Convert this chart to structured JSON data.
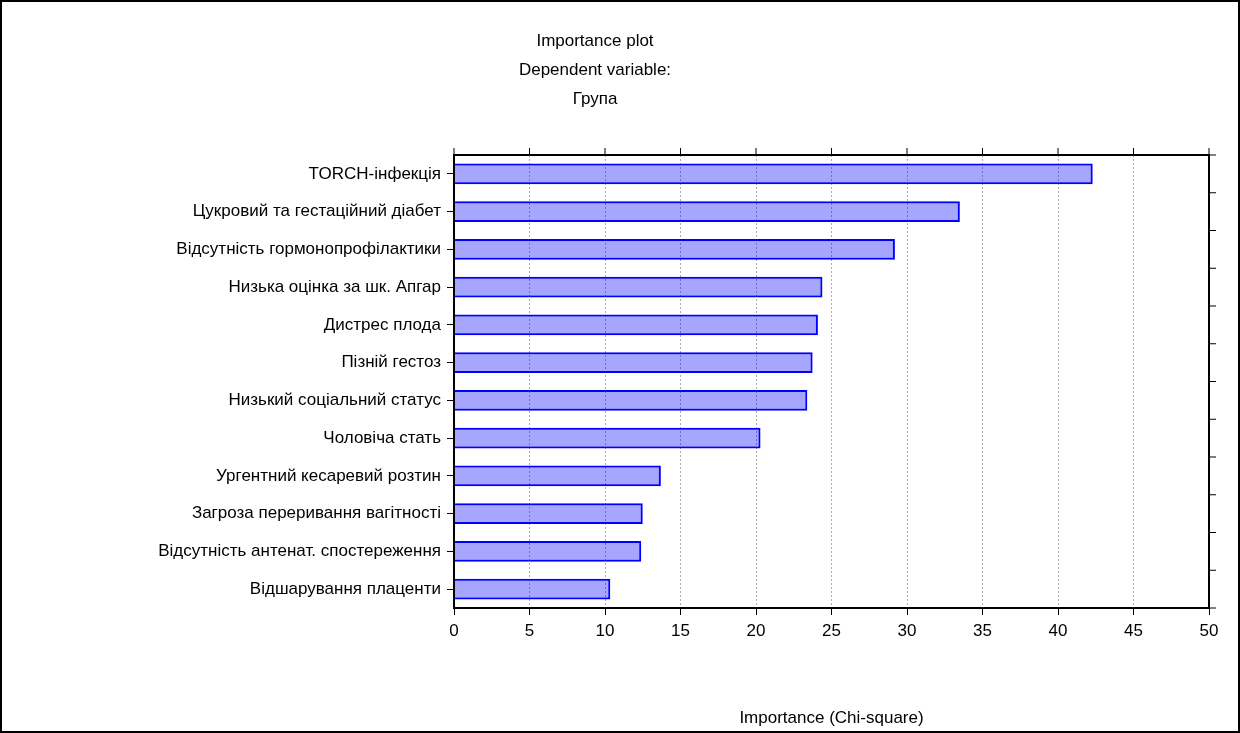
{
  "chart_data": {
    "type": "bar",
    "orientation": "horizontal",
    "title": "Importance plot\nDependent variable:\nГрупа",
    "xlabel": "Importance (Chi-square)",
    "categories": [
      "TORCH-інфекція",
      "Цукровий та гестаційний діабет",
      "Відсутність гормонопрофілактики",
      "Низька оцінка за шк. Апгар",
      "Дистрес плода",
      "Пізній гестоз",
      "Низький соціальний статус",
      "Чоловіча стать",
      "Ургентний кесаревий розтин",
      "Загроза переривання вагітності",
      "Відсутність антенат. спостереження",
      "Відшарування плаценти"
    ],
    "values": [
      42.3,
      33.5,
      29.2,
      24.4,
      24.1,
      23.75,
      23.4,
      20.3,
      13.7,
      12.5,
      12.4,
      10.35
    ],
    "color": "#0000ff",
    "xlim": [
      0,
      50
    ],
    "xticks": [
      0,
      5,
      10,
      15,
      20,
      25,
      30,
      35,
      40,
      45,
      50
    ],
    "grid": "x",
    "legend": false
  }
}
